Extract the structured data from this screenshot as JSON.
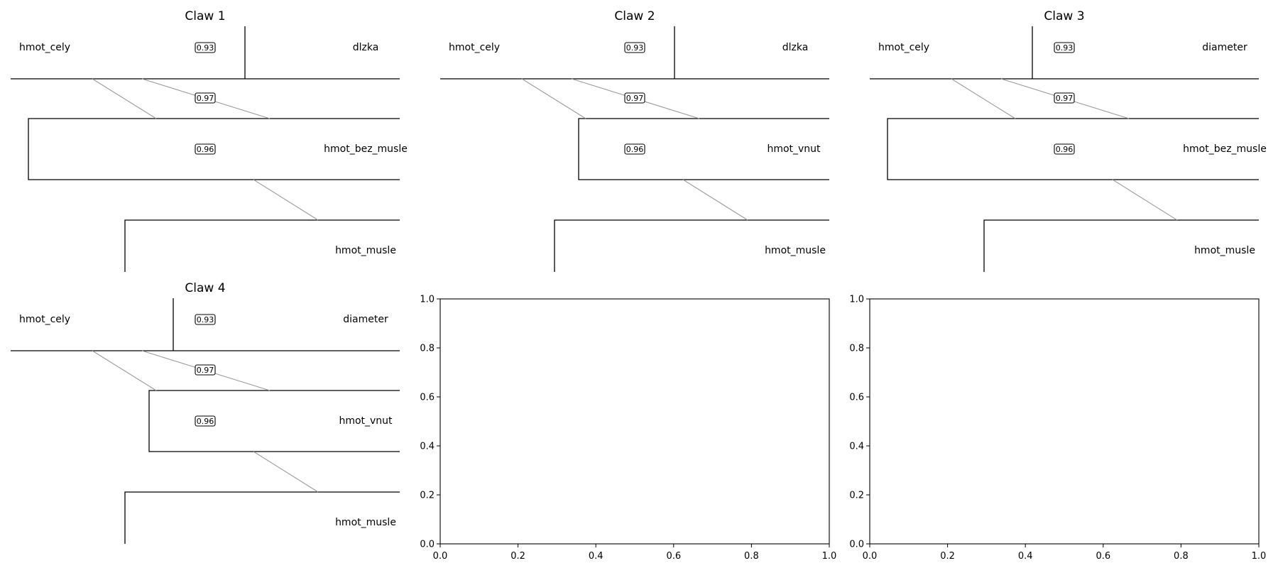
{
  "claws": [
    {
      "title": "Claw 1",
      "left_node": "hmot_cely",
      "right_node": "dlzka",
      "middle_node": "hmot_bez_musle",
      "bottom_node": "hmot_musle",
      "weights": [
        "0.93",
        "0.97",
        "0.96"
      ]
    },
    {
      "title": "Claw 2",
      "left_node": "hmot_cely",
      "right_node": "dlzka",
      "middle_node": "hmot_vnut",
      "bottom_node": "hmot_musle",
      "weights": [
        "0.93",
        "0.97",
        "0.96"
      ]
    },
    {
      "title": "Claw 3",
      "left_node": "hmot_cely",
      "right_node": "diameter",
      "middle_node": "hmot_bez_musle",
      "bottom_node": "hmot_musle",
      "weights": [
        "0.93",
        "0.97",
        "0.96"
      ]
    },
    {
      "title": "Claw 4",
      "left_node": "hmot_cely",
      "right_node": "diameter",
      "middle_node": "hmot_vnut",
      "bottom_node": "hmot_musle",
      "weights": [
        "0.93",
        "0.97",
        "0.96"
      ]
    }
  ],
  "empty_axes": [
    {
      "x_ticks": [
        "0.0",
        "0.2",
        "0.4",
        "0.6",
        "0.8",
        "1.0"
      ],
      "y_ticks": [
        "0.0",
        "0.2",
        "0.4",
        "0.6",
        "0.8",
        "1.0"
      ]
    },
    {
      "x_ticks": [
        "0.0",
        "0.2",
        "0.4",
        "0.6",
        "0.8",
        "1.0"
      ],
      "y_ticks": [
        "0.0",
        "0.2",
        "0.4",
        "0.6",
        "0.8",
        "1.0"
      ]
    }
  ]
}
